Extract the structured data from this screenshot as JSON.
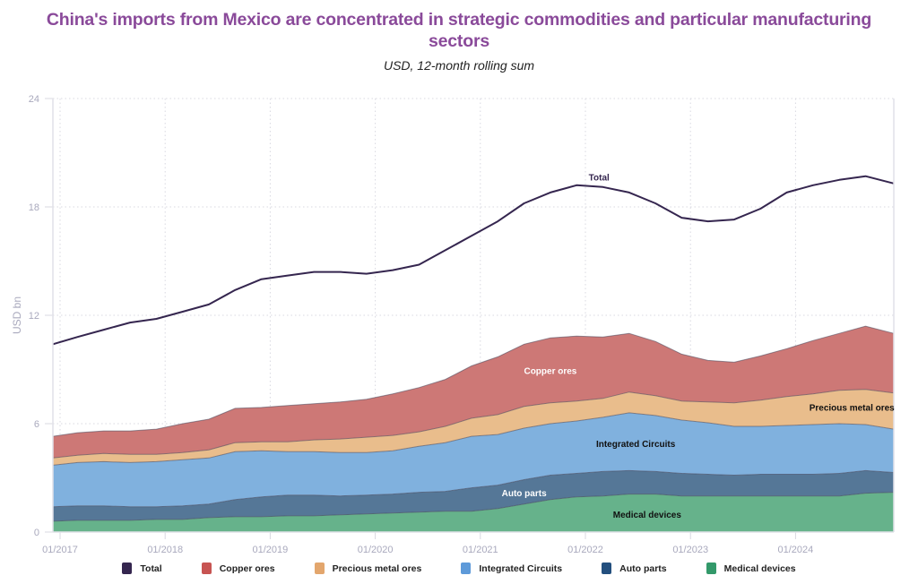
{
  "header": {
    "title": "China's imports from Mexico are concentrated in strategic commodities and particular manufacturing sectors",
    "subtitle": "USD, 12-month rolling sum"
  },
  "colors": {
    "title": "#8a4a9a",
    "Total": "#35264f",
    "Copper ores": "#cd7876",
    "Precious metal ores": "#e9bd8c",
    "Integrated Circuits": "#80b1de",
    "Auto parts": "#557797",
    "Medical devices": "#66b28b",
    "legend_Total": "#35264f",
    "legend_Copper ores": "#c75452",
    "legend_Precious metal ores": "#e3a66d",
    "legend_Integrated Circuits": "#5e9ad9",
    "legend_Auto parts": "#234f7e",
    "legend_Medical devices": "#33996a"
  },
  "legend": [
    {
      "label": "Total"
    },
    {
      "label": "Copper ores"
    },
    {
      "label": "Precious metal ores"
    },
    {
      "label": "Integrated Circuits"
    },
    {
      "label": "Auto parts"
    },
    {
      "label": "Medical devices"
    }
  ],
  "chart_data": {
    "type": "area",
    "stacked": true,
    "title": "China's imports from Mexico are concentrated in strategic commodities and particular manufacturing sectors",
    "subtitle": "USD, 12-month rolling sum",
    "xlabel": "",
    "ylabel": "USD bn",
    "ylim": [
      0,
      24
    ],
    "yticks": [
      0,
      6,
      12,
      18,
      24
    ],
    "xticks": [
      "01/2017",
      "01/2018",
      "01/2019",
      "01/2020",
      "01/2021",
      "01/2022",
      "01/2023",
      "01/2024"
    ],
    "grid": true,
    "legend_position": "bottom",
    "x": [
      "2016-12",
      "2017-03",
      "2017-06",
      "2017-09",
      "2017-12",
      "2018-03",
      "2018-06",
      "2018-09",
      "2018-12",
      "2019-03",
      "2019-06",
      "2019-09",
      "2019-12",
      "2020-03",
      "2020-06",
      "2020-09",
      "2020-12",
      "2021-03",
      "2021-06",
      "2021-09",
      "2021-12",
      "2022-03",
      "2022-06",
      "2022-09",
      "2022-12",
      "2023-03",
      "2023-06",
      "2023-09",
      "2023-12",
      "2024-03",
      "2024-06",
      "2024-09",
      "2024-12"
    ],
    "series": [
      {
        "name": "Medical devices",
        "values": [
          0.6,
          0.65,
          0.65,
          0.65,
          0.7,
          0.7,
          0.8,
          0.85,
          0.85,
          0.9,
          0.9,
          0.95,
          1.0,
          1.05,
          1.1,
          1.15,
          1.15,
          1.3,
          1.55,
          1.8,
          1.95,
          2.0,
          2.1,
          2.1,
          2.0,
          2.0,
          2.0,
          2.0,
          2.0,
          2.0,
          2.0,
          2.15,
          2.2
        ]
      },
      {
        "name": "Auto parts",
        "values": [
          0.8,
          0.8,
          0.8,
          0.75,
          0.7,
          0.75,
          0.75,
          0.95,
          1.1,
          1.15,
          1.15,
          1.05,
          1.05,
          1.05,
          1.1,
          1.1,
          1.3,
          1.3,
          1.35,
          1.35,
          1.3,
          1.35,
          1.3,
          1.25,
          1.25,
          1.2,
          1.15,
          1.2,
          1.2,
          1.2,
          1.25,
          1.25,
          1.1
        ]
      },
      {
        "name": "Integrated Circuits",
        "values": [
          2.3,
          2.4,
          2.45,
          2.45,
          2.5,
          2.55,
          2.55,
          2.65,
          2.55,
          2.4,
          2.4,
          2.4,
          2.35,
          2.4,
          2.55,
          2.7,
          2.85,
          2.8,
          2.85,
          2.85,
          2.9,
          3.0,
          3.2,
          3.1,
          2.95,
          2.85,
          2.7,
          2.65,
          2.7,
          2.75,
          2.75,
          2.55,
          2.4
        ]
      },
      {
        "name": "Precious metal ores",
        "values": [
          0.4,
          0.4,
          0.45,
          0.45,
          0.4,
          0.4,
          0.45,
          0.5,
          0.5,
          0.55,
          0.65,
          0.75,
          0.85,
          0.85,
          0.8,
          0.9,
          1.0,
          1.1,
          1.2,
          1.15,
          1.1,
          1.05,
          1.15,
          1.1,
          1.05,
          1.15,
          1.3,
          1.45,
          1.6,
          1.7,
          1.85,
          1.95,
          2.0
        ]
      },
      {
        "name": "Copper ores",
        "values": [
          1.2,
          1.25,
          1.25,
          1.3,
          1.4,
          1.6,
          1.7,
          1.9,
          1.9,
          2.0,
          2.0,
          2.05,
          2.1,
          2.3,
          2.45,
          2.6,
          2.9,
          3.2,
          3.45,
          3.6,
          3.6,
          3.4,
          3.25,
          3.0,
          2.6,
          2.3,
          2.25,
          2.45,
          2.65,
          2.95,
          3.15,
          3.5,
          3.3
        ]
      },
      {
        "name": "Total",
        "values": [
          10.4,
          10.8,
          11.2,
          11.6,
          11.8,
          12.2,
          12.6,
          13.4,
          14.0,
          14.2,
          14.4,
          14.4,
          14.3,
          14.5,
          14.8,
          15.6,
          16.4,
          17.2,
          18.2,
          18.8,
          19.2,
          19.1,
          18.8,
          18.2,
          17.4,
          17.2,
          17.3,
          17.9,
          18.8,
          19.2,
          19.5,
          19.7,
          19.3
        ]
      }
    ],
    "annotations": [
      {
        "text": "Total",
        "series": "Total"
      },
      {
        "text": "Copper ores",
        "series": "Copper ores"
      },
      {
        "text": "Precious metal ores",
        "series": "Precious metal ores"
      },
      {
        "text": "Integrated Circuits",
        "series": "Integrated Circuits"
      },
      {
        "text": "Auto parts",
        "series": "Auto parts"
      },
      {
        "text": "Medical devices",
        "series": "Medical devices"
      }
    ]
  }
}
